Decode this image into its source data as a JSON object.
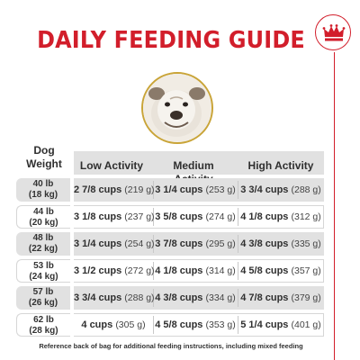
{
  "title": "DAILY FEEDING GUIDE",
  "logo": {
    "icon": "crown-icon",
    "color": "#d21e2b"
  },
  "photo": {
    "subject": "bulldog"
  },
  "headers": {
    "dog_line1": "Dog",
    "dog_line2": "Weight",
    "low": "Low Activity",
    "medium": "Medium Activity",
    "high": "High Activity"
  },
  "rows": [
    {
      "lb": "40 lb",
      "kg": "(18 kg)",
      "low_cups": "2 7/8 cups",
      "low_g": "(219 g)",
      "med_cups": "3 1/4 cups",
      "med_g": "(253 g)",
      "high_cups": "3 3/4 cups",
      "high_g": "(288 g)"
    },
    {
      "lb": "44 lb",
      "kg": "(20 kg)",
      "low_cups": "3 1/8 cups",
      "low_g": "(237 g)",
      "med_cups": "3 5/8 cups",
      "med_g": "(274 g)",
      "high_cups": "4 1/8 cups",
      "high_g": "(312 g)"
    },
    {
      "lb": "48 lb",
      "kg": "(22 kg)",
      "low_cups": "3 1/4 cups",
      "low_g": "(254 g)",
      "med_cups": "3 7/8 cups",
      "med_g": "(295 g)",
      "high_cups": "4 3/8 cups",
      "high_g": "(335 g)"
    },
    {
      "lb": "53 lb",
      "kg": "(24 kg)",
      "low_cups": "3 1/2 cups",
      "low_g": "(272 g)",
      "med_cups": "4 1/8 cups",
      "med_g": "(314 g)",
      "high_cups": "4 5/8 cups",
      "high_g": "(357 g)"
    },
    {
      "lb": "57 lb",
      "kg": "(26 kg)",
      "low_cups": "3 3/4 cups",
      "low_g": "(288 g)",
      "med_cups": "4 3/8 cups",
      "med_g": "(334 g)",
      "high_cups": "4 7/8 cups",
      "high_g": "(379 g)"
    },
    {
      "lb": "62 lb",
      "kg": "(28 kg)",
      "low_cups": "4 cups",
      "low_g": "(305 g)",
      "med_cups": "4 5/8 cups",
      "med_g": "(353 g)",
      "high_cups": "5 1/4 cups",
      "high_g": "(401 g)"
    }
  ],
  "footnote": "Reference back of bag for additional feeding instructions, including mixed feeding",
  "colors": {
    "brand_red": "#d21e2b",
    "gold": "#c9a437",
    "row_shade": "#e1e1e1"
  }
}
